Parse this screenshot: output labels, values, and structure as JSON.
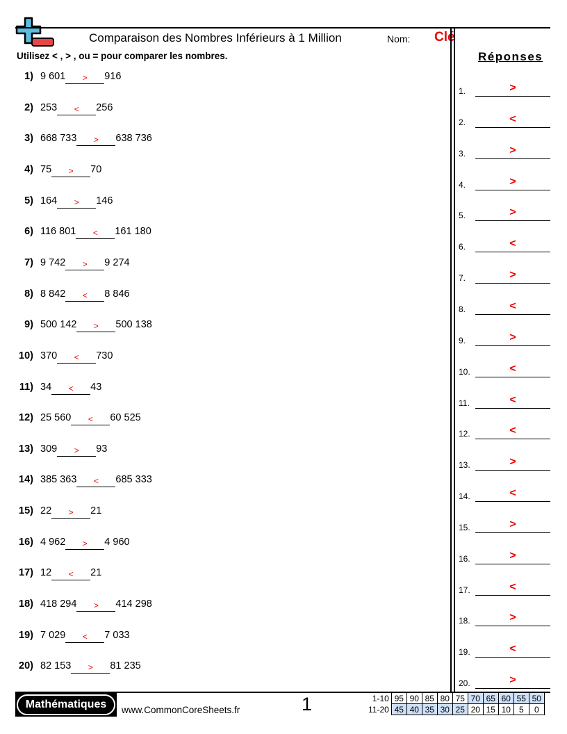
{
  "header": {
    "title": "Comparaison des Nombres Inférieurs à 1 Million",
    "name_label": "Nom:",
    "name_value": "Clé"
  },
  "instructions": "Utilisez < , > , ou = pour comparer les nombres.",
  "answers_title": "Réponses",
  "problems": [
    {
      "n": "1)",
      "a": "9 601",
      "s": ">",
      "b": "916"
    },
    {
      "n": "2)",
      "a": "253",
      "s": "<",
      "b": "256"
    },
    {
      "n": "3)",
      "a": "668 733",
      "s": ">",
      "b": "638 736"
    },
    {
      "n": "4)",
      "a": "75",
      "s": ">",
      "b": "70"
    },
    {
      "n": "5)",
      "a": "164",
      "s": ">",
      "b": "146"
    },
    {
      "n": "6)",
      "a": "116 801",
      "s": "<",
      "b": "161 180"
    },
    {
      "n": "7)",
      "a": "9 742",
      "s": ">",
      "b": "9 274"
    },
    {
      "n": "8)",
      "a": "8 842",
      "s": "<",
      "b": "8 846"
    },
    {
      "n": "9)",
      "a": "500 142",
      "s": ">",
      "b": "500 138"
    },
    {
      "n": "10)",
      "a": "370",
      "s": "<",
      "b": "730"
    },
    {
      "n": "11)",
      "a": "34",
      "s": "<",
      "b": "43"
    },
    {
      "n": "12)",
      "a": "25 560",
      "s": "<",
      "b": "60 525"
    },
    {
      "n": "13)",
      "a": "309",
      "s": ">",
      "b": "93"
    },
    {
      "n": "14)",
      "a": "385 363",
      "s": "<",
      "b": "685 333"
    },
    {
      "n": "15)",
      "a": "22",
      "s": ">",
      "b": "21"
    },
    {
      "n": "16)",
      "a": "4 962",
      "s": ">",
      "b": "4 960"
    },
    {
      "n": "17)",
      "a": "12",
      "s": "<",
      "b": "21"
    },
    {
      "n": "18)",
      "a": "418 294",
      "s": ">",
      "b": "414 298"
    },
    {
      "n": "19)",
      "a": "7 029",
      "s": "<",
      "b": "7 033"
    },
    {
      "n": "20)",
      "a": "82 153",
      "s": ">",
      "b": "81 235"
    }
  ],
  "answers": [
    {
      "n": "1.",
      "s": ">"
    },
    {
      "n": "2.",
      "s": "<"
    },
    {
      "n": "3.",
      "s": ">"
    },
    {
      "n": "4.",
      "s": ">"
    },
    {
      "n": "5.",
      "s": ">"
    },
    {
      "n": "6.",
      "s": "<"
    },
    {
      "n": "7.",
      "s": ">"
    },
    {
      "n": "8.",
      "s": "<"
    },
    {
      "n": "9.",
      "s": ">"
    },
    {
      "n": "10.",
      "s": "<"
    },
    {
      "n": "11.",
      "s": "<"
    },
    {
      "n": "12.",
      "s": "<"
    },
    {
      "n": "13.",
      "s": ">"
    },
    {
      "n": "14.",
      "s": "<"
    },
    {
      "n": "15.",
      "s": ">"
    },
    {
      "n": "16.",
      "s": ">"
    },
    {
      "n": "17.",
      "s": "<"
    },
    {
      "n": "18.",
      "s": ">"
    },
    {
      "n": "19.",
      "s": "<"
    },
    {
      "n": "20.",
      "s": ">"
    }
  ],
  "footer": {
    "brand": "Mathématiques",
    "site": "www.CommonCoreSheets.fr",
    "page": "1",
    "score_rows": [
      {
        "label": "1-10",
        "values": [
          "95",
          "90",
          "85",
          "80",
          "75",
          "70",
          "65",
          "60",
          "55",
          "50"
        ]
      },
      {
        "label": "11-20",
        "values": [
          "45",
          "40",
          "35",
          "30",
          "25",
          "20",
          "15",
          "10",
          "5",
          "0"
        ]
      }
    ]
  },
  "colors": {
    "answer": "#e00000",
    "logo_plus": "#5bbde0",
    "logo_minus": "#e84545",
    "score_highlight": "#cfe0f8"
  }
}
